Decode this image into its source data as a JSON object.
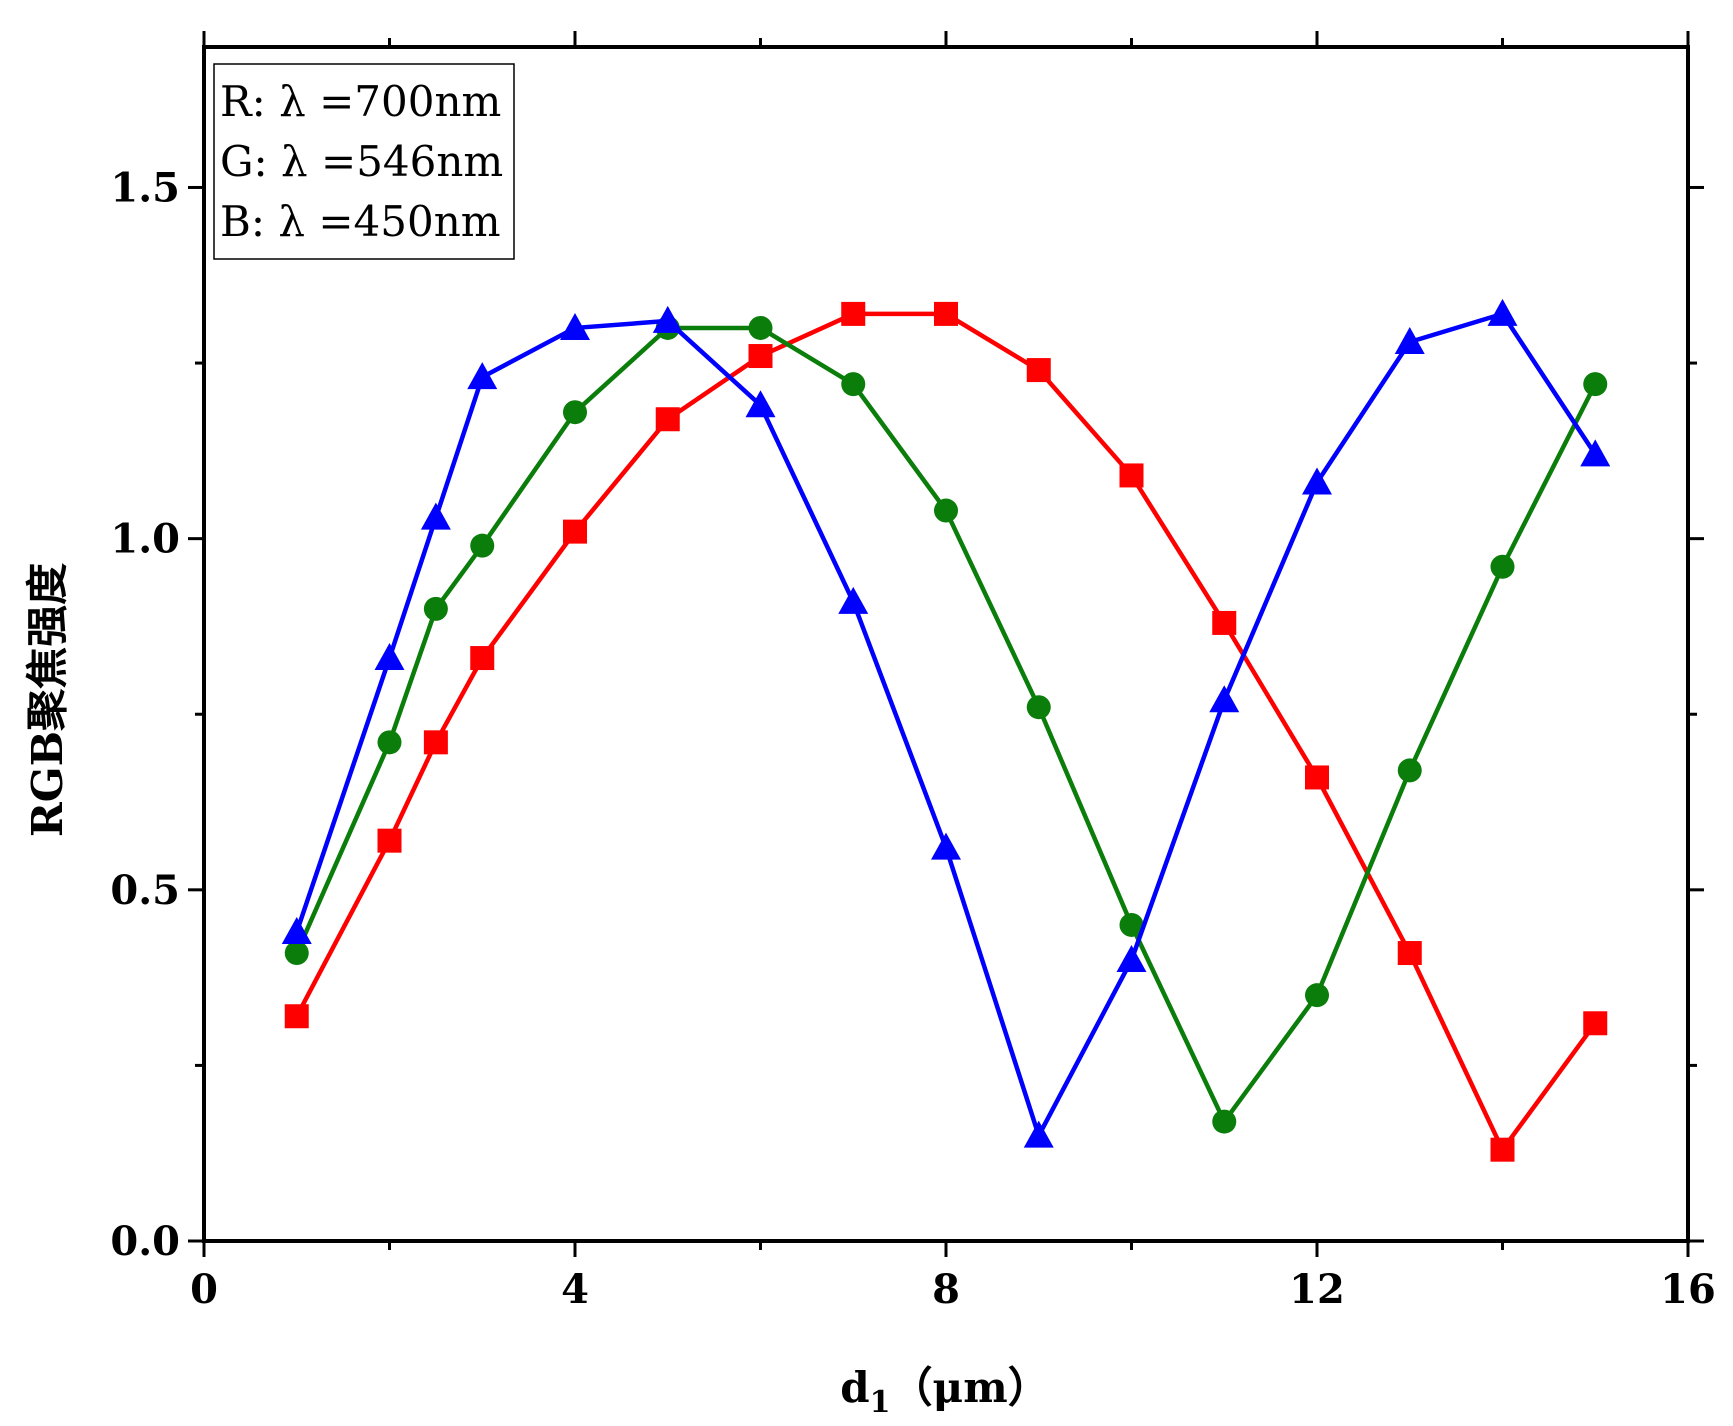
{
  "chart_data": {
    "type": "line",
    "xlabel": "d",
    "xlabel_subscript": "1",
    "xlabel_unit": "（μm）",
    "ylabel": "RGB聚焦强度",
    "xlim": [
      0,
      16
    ],
    "ylim": [
      0,
      1.7
    ],
    "xticks": [
      0,
      4,
      8,
      12,
      16
    ],
    "xtick_labels": [
      "0",
      "4",
      "8",
      "12",
      "16"
    ],
    "x_minor_ticks": [
      2,
      6,
      10,
      14
    ],
    "yticks": [
      0,
      0.5,
      1.0,
      1.5
    ],
    "ytick_labels": [
      "0.0",
      "0.5",
      "1.0",
      "1.5"
    ],
    "y_minor_ticks": [
      0.25,
      0.75,
      1.25
    ],
    "legend_position": "top-left",
    "legend": [
      "R: λ =700nm",
      "G: λ =546nm",
      "B: λ =450nm"
    ],
    "series": [
      {
        "name": "R: λ =700nm",
        "color": "#ff0000",
        "marker": "square",
        "x": [
          1,
          2,
          2.5,
          3,
          4,
          5,
          6,
          7,
          8,
          9,
          10,
          11,
          12,
          13,
          14,
          15
        ],
        "y": [
          0.32,
          0.57,
          0.71,
          0.83,
          1.01,
          1.17,
          1.26,
          1.32,
          1.32,
          1.24,
          1.09,
          0.88,
          0.66,
          0.41,
          0.13,
          0.31
        ]
      },
      {
        "name": "G: λ =546nm",
        "color": "#0a7d0a",
        "marker": "circle",
        "x": [
          1,
          2,
          2.5,
          3,
          4,
          5,
          6,
          7,
          8,
          9,
          10,
          11,
          12,
          13,
          14,
          15
        ],
        "y": [
          0.41,
          0.71,
          0.9,
          0.99,
          1.18,
          1.3,
          1.3,
          1.22,
          1.04,
          0.76,
          0.45,
          0.17,
          0.35,
          0.67,
          0.96,
          1.22
        ]
      },
      {
        "name": "B: λ =450nm",
        "color": "#0000ff",
        "marker": "triangle",
        "x": [
          1,
          2,
          2.5,
          3,
          4,
          5,
          6,
          7,
          8,
          9,
          10,
          11,
          12,
          13,
          14,
          15
        ],
        "y": [
          0.44,
          0.83,
          1.03,
          1.23,
          1.3,
          1.31,
          1.19,
          0.91,
          0.56,
          0.15,
          0.4,
          0.77,
          1.08,
          1.28,
          1.32,
          1.12
        ]
      }
    ]
  }
}
